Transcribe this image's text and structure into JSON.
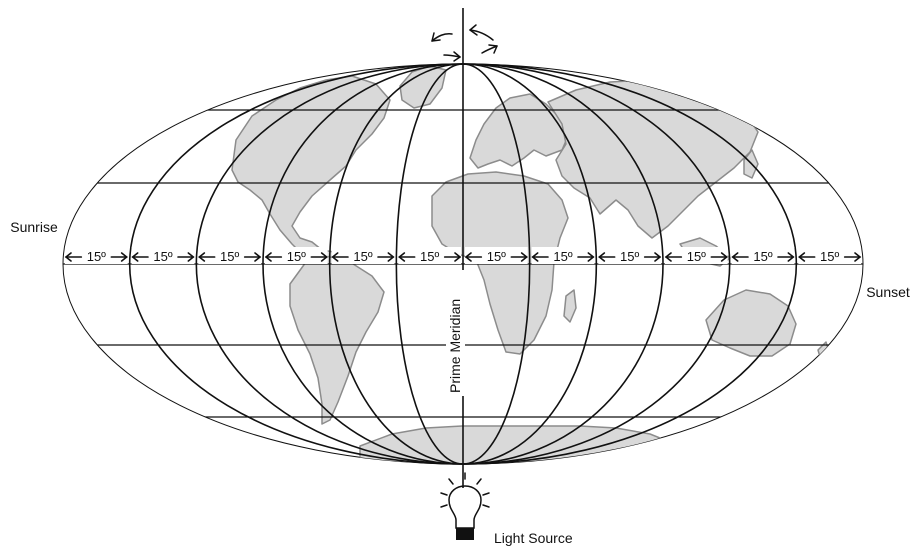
{
  "labels": {
    "sunrise": "Sunrise",
    "sunset": "Sunset",
    "prime_meridian": "Prime Meridian",
    "light_source": "Light Source"
  },
  "degree_label": "15º",
  "degree_count": 12,
  "colors": {
    "land": "#d9d9d9",
    "coast": "#8c8c8c",
    "lines": "#111111",
    "ocean": "#ffffff"
  },
  "icons": {
    "light_source": "light-bulb-icon",
    "rotation": "rotation-arrows-icon"
  }
}
